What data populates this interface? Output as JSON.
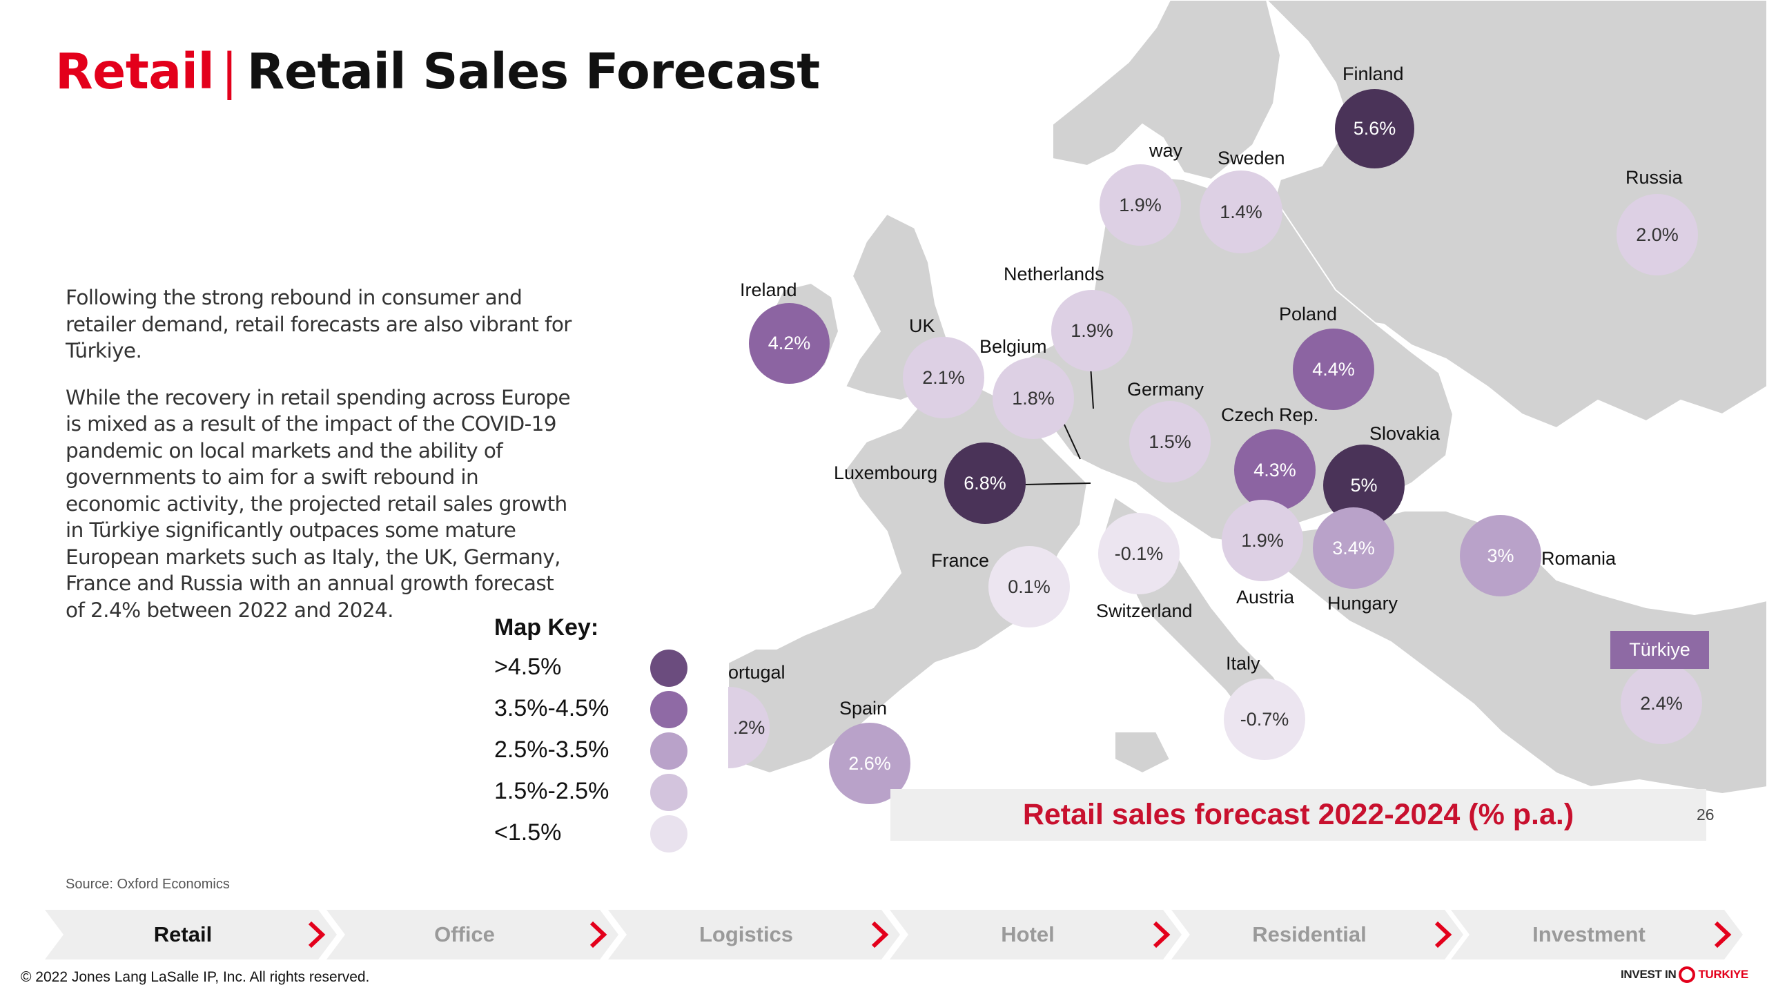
{
  "header": {
    "section": "Retail",
    "separator": "|",
    "title": "Retail Sales Forecast"
  },
  "body": {
    "paragraph1": "Following the strong rebound in consumer and retailer demand, retail forecasts are also vibrant for Türkiye.",
    "paragraph2": "While the recovery in retail spending across Europe is mixed as a result of the impact of the COVID-19 pandemic on local markets and the ability of governments to aim for a swift rebound in economic activity, the projected retail sales growth in Türkiye significantly outpaces some mature European markets such as Italy, the UK, Germany, France and Russia with an annual growth forecast of 2.4% between 2022 and 2024."
  },
  "map_key": {
    "title": "Map Key:",
    "items": [
      {
        "label": ">4.5%",
        "color": "#6b4c7e"
      },
      {
        "label": "3.5%-4.5%",
        "color": "#8f6aa5"
      },
      {
        "label": "2.5%-3.5%",
        "color": "#b9a2c9"
      },
      {
        "label": "1.5%-2.5%",
        "color": "#d3c4dd"
      },
      {
        "label": "<1.5%",
        "color": "#e9e2ee"
      }
    ]
  },
  "source": "Source: Oxford Economics",
  "map": {
    "caption": "Retail sales forecast 2022-2024 (% p.a.)",
    "page_number": "26",
    "turkiye_tag": "Türkiye",
    "bubbles": [
      {
        "country": "Finland",
        "value": "5.6%"
      },
      {
        "country": "Norway",
        "value": "1.9%"
      },
      {
        "country": "Sweden",
        "value": "1.4%"
      },
      {
        "country": "Russia",
        "value": "2.0%"
      },
      {
        "country": "Ireland",
        "value": "4.2%"
      },
      {
        "country": "UK",
        "value": "2.1%"
      },
      {
        "country": "Netherlands",
        "value": "1.9%"
      },
      {
        "country": "Belgium",
        "value": "1.8%"
      },
      {
        "country": "Poland",
        "value": "4.4%"
      },
      {
        "country": "Germany",
        "value": "1.5%"
      },
      {
        "country": "Czech Rep.",
        "value": "4.3%"
      },
      {
        "country": "Slovakia",
        "value": "5%"
      },
      {
        "country": "Luxembourg",
        "value": "6.8%"
      },
      {
        "country": "Switzerland",
        "value": "-0.1%"
      },
      {
        "country": "Austria",
        "value": "1.9%"
      },
      {
        "country": "Hungary",
        "value": "3.4%"
      },
      {
        "country": "Romania",
        "value": "3%"
      },
      {
        "country": "France",
        "value": "0.1%"
      },
      {
        "country": "Portugal",
        "value": ".2%"
      },
      {
        "country": "Spain",
        "value": "2.6%"
      },
      {
        "country": "Italy",
        "value": "-0.7%"
      },
      {
        "country": "Türkiye",
        "value": "2.4%"
      }
    ],
    "labels": {
      "finland": "Finland",
      "norway": "way",
      "sweden": "Sweden",
      "russia": "Russia",
      "ireland": "Ireland",
      "uk": "UK",
      "netherlands": "Netherlands",
      "belgium": "Belgium",
      "poland": "Poland",
      "germany": "Germany",
      "czech": "Czech Rep.",
      "slovakia": "Slovakia",
      "luxembourg": "Luxembourg",
      "france": "France",
      "switzerland": "Switzerland",
      "austria": "Austria",
      "hungary": "Hungary",
      "romania": "Romania",
      "portugal": "ortugal",
      "spain": "Spain",
      "italy": "Italy"
    }
  },
  "nav": {
    "items": [
      {
        "label": "Retail",
        "active": true
      },
      {
        "label": "Office",
        "active": false
      },
      {
        "label": "Logistics",
        "active": false
      },
      {
        "label": "Hotel",
        "active": false
      },
      {
        "label": "Residential",
        "active": false
      },
      {
        "label": "Investment",
        "active": false
      }
    ],
    "chevron_color": "#e3001b"
  },
  "footer": {
    "copyright": "© 2022 Jones Lang LaSalle IP, Inc. All rights reserved.",
    "logo_prefix": "INVEST IN",
    "logo_brand": "TURKIYE"
  }
}
